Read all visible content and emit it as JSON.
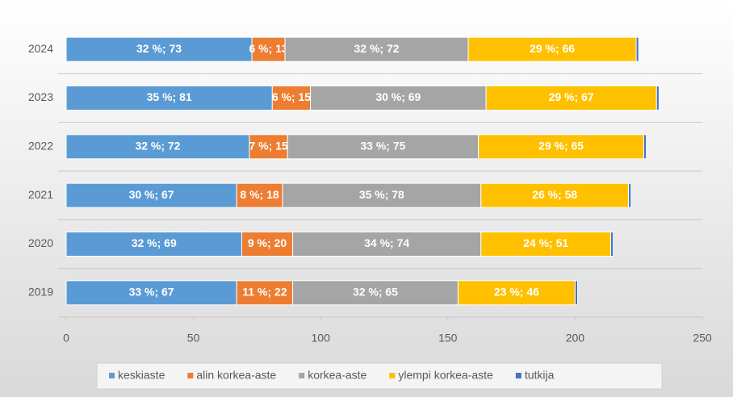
{
  "chart_data": {
    "type": "stacked_barh",
    "categories": [
      "2019",
      "2020",
      "2021",
      "2022",
      "2023",
      "2024"
    ],
    "series": [
      {
        "name": "keskiaste",
        "color": "#5b9bd5",
        "values": [
          67,
          69,
          67,
          72,
          81,
          73
        ],
        "value_labels": [
          "33 %; 67",
          "32 %; 69",
          "30 %; 67",
          "32 %; 72",
          "35 %; 81",
          "32 %; 73"
        ]
      },
      {
        "name": "alin korkea-aste",
        "color": "#ed7d31",
        "values": [
          22,
          20,
          18,
          15,
          15,
          13
        ],
        "value_labels": [
          "11 %; 22",
          "9 %; 20",
          "8 %; 18",
          "7 %; 15",
          "6 %; 15",
          "6 %; 13"
        ]
      },
      {
        "name": "korkea-aste",
        "color": "#a5a5a5",
        "values": [
          65,
          74,
          78,
          75,
          69,
          72
        ],
        "value_labels": [
          "32 %; 65",
          "34 %; 74",
          "35 %; 78",
          "33 %; 75",
          "30 %; 69",
          "32 %; 72"
        ]
      },
      {
        "name": "ylempi korkea-aste",
        "color": "#ffc000",
        "values": [
          46,
          51,
          58,
          65,
          67,
          66
        ],
        "value_labels": [
          "23 %; 46",
          "24 %; 51",
          "26 %; 58",
          "29 %; 65",
          "29 %; 67",
          "29 %; 66"
        ]
      },
      {
        "name": "tutkija",
        "color": "#4472c4",
        "values": [
          1,
          1,
          1,
          1,
          1,
          1
        ]
      }
    ],
    "xlim": [
      0,
      250
    ],
    "xticks": [
      0,
      50,
      100,
      150,
      200,
      250
    ],
    "legend": "bottom"
  }
}
